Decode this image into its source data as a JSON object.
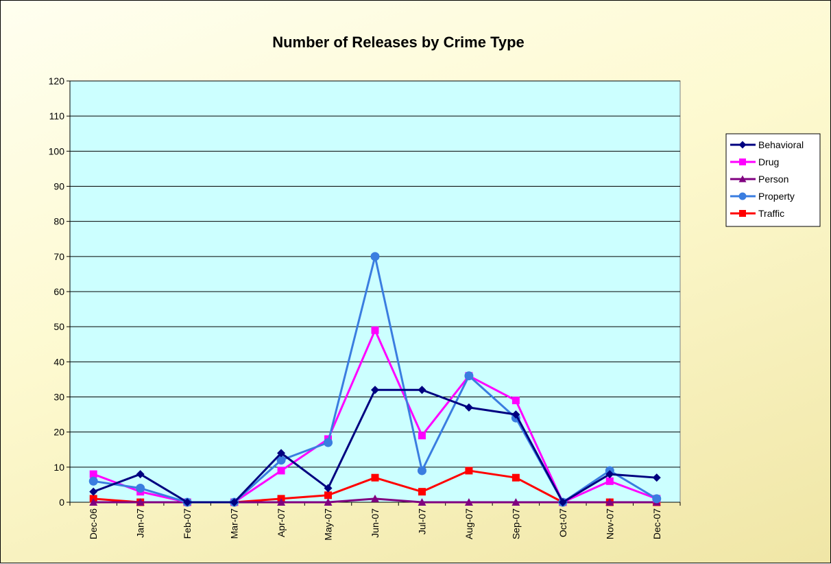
{
  "chart_data": {
    "type": "line",
    "title": "Number of Releases by Crime Type",
    "xlabel": "",
    "ylabel": "",
    "ylim": [
      0,
      120
    ],
    "yticks": [
      0,
      10,
      20,
      30,
      40,
      50,
      60,
      70,
      80,
      90,
      100,
      110,
      120
    ],
    "categories": [
      "Dec-06",
      "Jan-07",
      "Feb-07",
      "Mar-07",
      "Apr-07",
      "May-07",
      "Jun-07",
      "Jul-07",
      "Aug-07",
      "Sep-07",
      "Oct-07",
      "Nov-07",
      "Dec-07"
    ],
    "grid": "horizontal",
    "legend": "right",
    "plot_background": "#ccffff",
    "series": [
      {
        "name": "Behavioral",
        "color": "#000080",
        "marker": "diamond",
        "values": [
          3,
          8,
          0,
          0,
          14,
          4,
          32,
          32,
          27,
          25,
          0,
          8,
          7
        ]
      },
      {
        "name": "Drug",
        "color": "#ff00ff",
        "marker": "square",
        "values": [
          8,
          3,
          0,
          0,
          9,
          18,
          49,
          19,
          36,
          29,
          0,
          6,
          1
        ]
      },
      {
        "name": "Person",
        "color": "#800080",
        "marker": "triangle",
        "values": [
          0,
          0,
          0,
          0,
          0,
          0,
          1,
          0,
          0,
          0,
          0,
          0,
          0
        ]
      },
      {
        "name": "Property",
        "color": "#3a7de0",
        "marker": "circle",
        "values": [
          6,
          4,
          0,
          0,
          12,
          17,
          70,
          9,
          36,
          24,
          0,
          9,
          1
        ]
      },
      {
        "name": "Traffic",
        "color": "#ff0000",
        "marker": "square",
        "values": [
          1,
          0,
          0,
          0,
          1,
          2,
          7,
          3,
          9,
          7,
          0,
          0,
          0
        ]
      }
    ]
  }
}
